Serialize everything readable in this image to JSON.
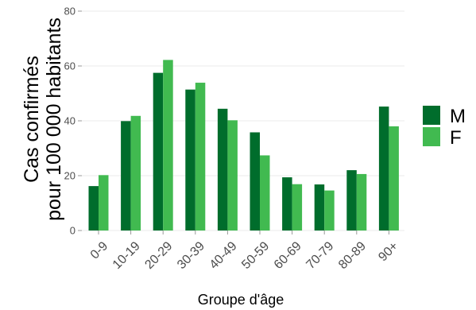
{
  "chart_data": {
    "type": "bar",
    "categories": [
      "0-9",
      "10-19",
      "20-29",
      "30-39",
      "40-49",
      "50-59",
      "60-69",
      "70-79",
      "80-89",
      "90+"
    ],
    "series": [
      {
        "name": "M",
        "color": "#006d2c",
        "values": [
          16.2,
          39.9,
          57.5,
          51.4,
          44.4,
          35.8,
          19.4,
          16.8,
          22.0,
          45.2
        ]
      },
      {
        "name": "F",
        "color": "#41ba50",
        "values": [
          20.2,
          41.8,
          62.2,
          53.9,
          40.2,
          27.4,
          16.9,
          14.6,
          20.6,
          38.0
        ]
      }
    ],
    "xlabel": "Groupe d'âge",
    "ylabel_lines": [
      "Cas confirmés",
      "pour 100 000 habitants"
    ],
    "ylim": [
      0,
      80
    ],
    "yticks": [
      0,
      20,
      40,
      60,
      80
    ],
    "grid": true,
    "legend_position": "right"
  }
}
